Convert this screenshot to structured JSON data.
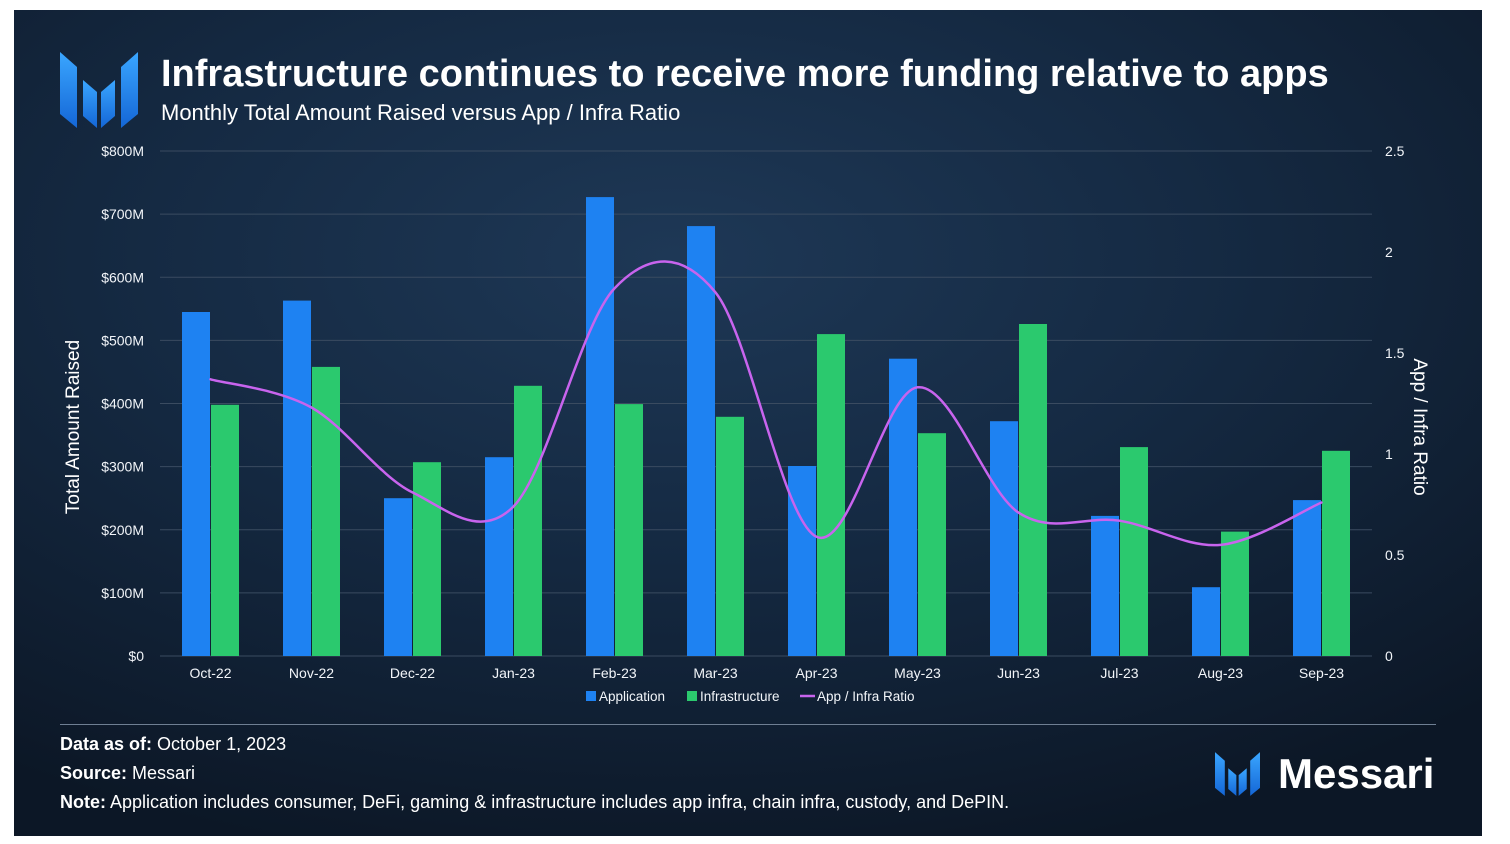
{
  "header": {
    "logo_icon": "messari-logo-icon"
  },
  "chart_data": {
    "type": "bar",
    "title": "Infrastructure continues to receive more funding relative to apps",
    "subtitle": "Monthly Total Amount Raised versus App / Infra Ratio",
    "categories": [
      "Oct-22",
      "Nov-22",
      "Dec-22",
      "Jan-23",
      "Feb-23",
      "Mar-23",
      "Apr-23",
      "May-23",
      "Jun-23",
      "Jul-23",
      "Aug-23",
      "Sep-23"
    ],
    "series": [
      {
        "name": "Application",
        "color": "#1e82f2",
        "secondary_axis": false,
        "values": [
          545,
          563,
          250,
          315,
          727,
          681,
          301,
          471,
          372,
          222,
          109,
          247
        ]
      },
      {
        "name": "Infrastructure",
        "color": "#2bc96e",
        "secondary_axis": false,
        "values": [
          398,
          458,
          307,
          428,
          399,
          379,
          510,
          353,
          526,
          331,
          197,
          325
        ]
      },
      {
        "name": "App / Infra Ratio",
        "color": "#c864ee",
        "secondary_axis": true,
        "values": [
          1.37,
          1.23,
          0.81,
          0.74,
          1.82,
          1.8,
          0.59,
          1.33,
          0.71,
          0.67,
          0.55,
          0.76
        ]
      }
    ],
    "ylabel": "Total Amount Raised",
    "y2label": "App / Infra Ratio",
    "ylim": [
      0,
      800
    ],
    "y2lim": [
      0,
      2.5
    ],
    "yticks": [
      {
        "value": 0,
        "label": "$0"
      },
      {
        "value": 100,
        "label": "$100M"
      },
      {
        "value": 200,
        "label": "$200M"
      },
      {
        "value": 300,
        "label": "$300M"
      },
      {
        "value": 400,
        "label": "$400M"
      },
      {
        "value": 500,
        "label": "$500M"
      },
      {
        "value": 600,
        "label": "$600M"
      },
      {
        "value": 700,
        "label": "$700M"
      },
      {
        "value": 800,
        "label": "$800M"
      }
    ],
    "y2ticks": [
      {
        "value": 0,
        "label": "0"
      },
      {
        "value": 0.5,
        "label": "0.5"
      },
      {
        "value": 1,
        "label": "1"
      },
      {
        "value": 1.5,
        "label": "1.5"
      },
      {
        "value": 2,
        "label": "2"
      },
      {
        "value": 2.5,
        "label": "2.5"
      }
    ],
    "grid": true,
    "legend_position": "bottom"
  },
  "footer": {
    "data_as_of": {
      "label": "Data as of:",
      "value": "October 1, 2023"
    },
    "source": {
      "label": "Source:",
      "value": "Messari"
    },
    "note": {
      "label": "Note:",
      "value": "Application includes consumer, DeFi, gaming & infrastructure includes app infra, chain infra, custody, and DePIN."
    }
  },
  "brand": {
    "name": "Messari",
    "logo_icon": "messari-logo-icon",
    "accent_color": "#1e8cf5"
  }
}
